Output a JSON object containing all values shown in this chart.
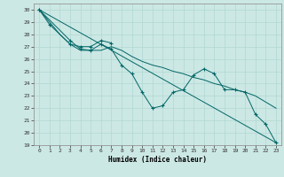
{
  "xlabel": "Humidex (Indice chaleur)",
  "bg_color": "#cce8e4",
  "grid_color": "#b0d8d4",
  "line_color": "#006666",
  "xlim": [
    -0.5,
    23.5
  ],
  "ylim": [
    19,
    30.5
  ],
  "yticks": [
    19,
    20,
    21,
    22,
    23,
    24,
    25,
    26,
    27,
    28,
    29,
    30
  ],
  "xticks": [
    0,
    1,
    2,
    3,
    4,
    5,
    6,
    7,
    8,
    9,
    10,
    11,
    12,
    13,
    14,
    15,
    16,
    17,
    18,
    19,
    20,
    21,
    22,
    23
  ],
  "series": [
    {
      "x": [
        0,
        1,
        3,
        4,
        5,
        6,
        7
      ],
      "y": [
        30.0,
        28.8,
        27.2,
        27.0,
        27.0,
        27.5,
        27.3
      ],
      "marker": true
    },
    {
      "x": [
        0,
        3,
        4,
        5,
        6,
        7,
        8,
        9,
        10,
        11,
        12,
        13,
        14,
        15,
        16,
        17,
        18,
        19,
        20,
        21,
        22,
        23
      ],
      "y": [
        30.0,
        27.5,
        26.8,
        26.7,
        27.2,
        26.8,
        25.5,
        24.8,
        23.3,
        22.0,
        22.2,
        23.3,
        23.5,
        24.7,
        25.2,
        24.8,
        23.5,
        23.5,
        23.3,
        21.5,
        20.7,
        19.2
      ],
      "marker": true
    },
    {
      "x": [
        0,
        23
      ],
      "y": [
        30.0,
        19.2
      ],
      "marker": false
    },
    {
      "x": [
        0,
        2,
        3,
        4,
        5,
        6,
        7,
        8,
        9,
        10,
        11,
        12,
        13,
        14,
        15,
        16,
        17,
        18,
        19,
        20,
        21,
        22,
        23
      ],
      "y": [
        30.0,
        28.0,
        27.2,
        26.7,
        26.7,
        26.7,
        27.0,
        26.7,
        26.2,
        25.8,
        25.5,
        25.3,
        25.0,
        24.8,
        24.5,
        24.3,
        24.0,
        23.8,
        23.5,
        23.3,
        23.0,
        22.5,
        22.0
      ],
      "marker": false
    }
  ]
}
